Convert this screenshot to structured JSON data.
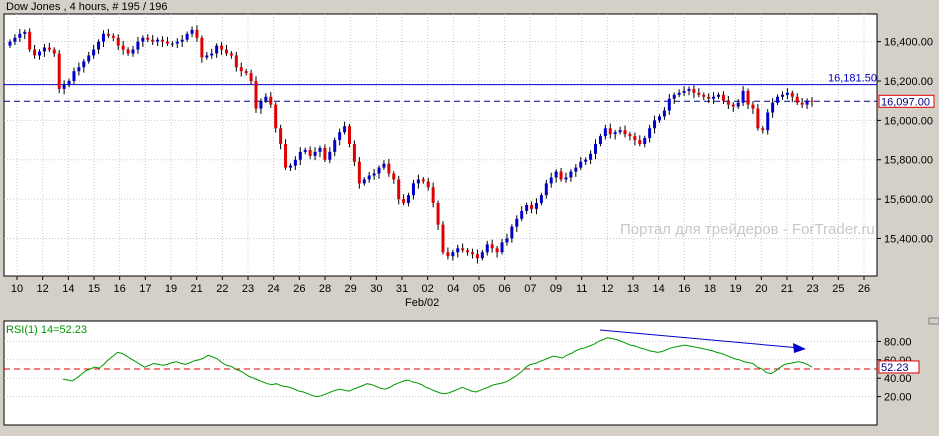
{
  "main_chart": {
    "title": "Dow Jones , 4 hours, # 195 / 196",
    "watermark": "Портал для трейдеров - ForTrader.ru",
    "price_ticks": [
      "16,400.00",
      "16,200.00",
      "16,000.00",
      "15,800.00",
      "15,600.00",
      "15,400.00"
    ],
    "price_tick_values": [
      16400,
      16200,
      16000,
      15800,
      15600,
      15400
    ],
    "y_range": [
      15260,
      16500
    ],
    "date_ticks": [
      "10",
      "12",
      "14",
      "15",
      "16",
      "17",
      "19",
      "21",
      "22",
      "23",
      "24",
      "26",
      "28",
      "29",
      "30",
      "31",
      "02",
      "04",
      "05",
      "06",
      "07",
      "09",
      "11",
      "12",
      "13",
      "14",
      "16",
      "18",
      "19",
      "20",
      "21",
      "23",
      "25",
      "26"
    ],
    "month_label": "Feb/02",
    "hline_solid": {
      "label": "16,181.50",
      "value": 16181.5,
      "color": "#0000cc"
    },
    "hline_dashed": {
      "label": "16,097.00",
      "value": 16097,
      "color": "#000080"
    },
    "bull_color": "#0000cc",
    "bear_color": "#e00000"
  },
  "chart_data": [
    {
      "type": "candlestick",
      "title": "Dow Jones , 4 hours, # 195 / 196",
      "xlabel": "",
      "ylabel": "",
      "ylim": [
        15260,
        16500
      ],
      "series": [
        {
          "name": "Dow Jones",
          "close": [
            16400,
            16420,
            16440,
            16450,
            16360,
            16330,
            16350,
            16370,
            16360,
            16340,
            16160,
            16180,
            16200,
            16250,
            16270,
            16300,
            16330,
            16360,
            16400,
            16440,
            16430,
            16420,
            16380,
            16360,
            16340,
            16360,
            16400,
            16420,
            16410,
            16400,
            16410,
            16400,
            16390,
            16390,
            16400,
            16410,
            16440,
            16460,
            16420,
            16320,
            16330,
            16340,
            16380,
            16360,
            16340,
            16330,
            16270,
            16250,
            16240,
            16200,
            16060,
            16100,
            16120,
            16080,
            15960,
            15880,
            15760,
            15770,
            15800,
            15840,
            15850,
            15820,
            15840,
            15860,
            15800,
            15840,
            15900,
            15940,
            15970,
            15880,
            15790,
            15680,
            15700,
            15720,
            15730,
            15760,
            15780,
            15730,
            15700,
            15600,
            15580,
            15620,
            15680,
            15700,
            15690,
            15660,
            15580,
            15470,
            15330,
            15310,
            15330,
            15350,
            15340,
            15330,
            15320,
            15300,
            15330,
            15370,
            15350,
            15330,
            15380,
            15400,
            15460,
            15500,
            15540,
            15570,
            15550,
            15580,
            15620,
            15680,
            15710,
            15740,
            15700,
            15710,
            15740,
            15760,
            15790,
            15800,
            15830,
            15880,
            15920,
            15960,
            15930,
            15940,
            15950,
            15930,
            15920,
            15900,
            15880,
            15910,
            15960,
            16000,
            16020,
            16050,
            16110,
            16130,
            16140,
            16150,
            16160,
            16140,
            16130,
            16120,
            16110,
            16120,
            16130,
            16100,
            16080,
            16070,
            16090,
            16150,
            16080,
            16060,
            15960,
            15950,
            16040,
            16090,
            16120,
            16130,
            16140,
            16120,
            16090,
            16080,
            16100,
            16097
          ]
        }
      ]
    },
    {
      "type": "line",
      "title": "RSI(1) 14=52.23",
      "xlabel": "",
      "ylabel": "",
      "ylim": [
        0,
        100
      ],
      "yticks": [
        "80.00",
        "60.00",
        "40.00",
        "20.00"
      ],
      "ytick_values": [
        80,
        60,
        40,
        20
      ],
      "reference_line": 50,
      "current_value": "52.23",
      "series": [
        {
          "name": "RSI(1) 14",
          "values": [
            39,
            38,
            37,
            40,
            44,
            48,
            50,
            52,
            51,
            55,
            60,
            64,
            68,
            67,
            64,
            61,
            58,
            55,
            52,
            54,
            56,
            55,
            54,
            55,
            57,
            58,
            56,
            55,
            57,
            59,
            60,
            62,
            65,
            63,
            61,
            57,
            54,
            53,
            50,
            48,
            45,
            42,
            40,
            38,
            36,
            34,
            33,
            34,
            32,
            31,
            30,
            28,
            26,
            25,
            23,
            21,
            20,
            21,
            23,
            25,
            27,
            28,
            27,
            26,
            28,
            30,
            32,
            34,
            33,
            31,
            29,
            28,
            30,
            33,
            35,
            37,
            38,
            36,
            35,
            33,
            30,
            28,
            26,
            24,
            23,
            24,
            26,
            28,
            30,
            28,
            26,
            25,
            27,
            29,
            31,
            33,
            34,
            35,
            37,
            40,
            43,
            47,
            52,
            55,
            56,
            58,
            60,
            62,
            64,
            63,
            62,
            65,
            67,
            70,
            72,
            73,
            75,
            77,
            80,
            82,
            84,
            83,
            82,
            80,
            78,
            76,
            75,
            73,
            72,
            70,
            69,
            68,
            69,
            71,
            73,
            74,
            75,
            76,
            75,
            74,
            73,
            72,
            71,
            70,
            68,
            67,
            65,
            63,
            61,
            60,
            58,
            57,
            56,
            52,
            50,
            46,
            45,
            48,
            52,
            55,
            56,
            57,
            58,
            57,
            55,
            52
          ]
        }
      ],
      "trendline": {
        "color": "#0000cc"
      }
    }
  ]
}
